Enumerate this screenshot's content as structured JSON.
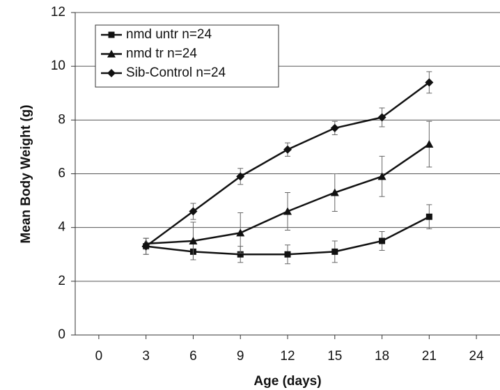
{
  "chart_data": {
    "type": "line",
    "x_label": "Age (days)",
    "y_label": "Mean Body Weight (g)",
    "x": [
      3,
      6,
      9,
      12,
      15,
      18,
      21
    ],
    "series": [
      {
        "name": "nmd untr n=24",
        "color": "#111111",
        "marker": "square",
        "values": [
          3.3,
          3.1,
          3.0,
          3.0,
          3.1,
          3.5,
          4.4
        ],
        "errors": [
          0.3,
          0.3,
          0.3,
          0.35,
          0.4,
          0.35,
          0.45
        ]
      },
      {
        "name": "nmd tr n=24",
        "color": "#111111",
        "marker": "triangle",
        "values": [
          3.4,
          3.5,
          3.8,
          4.6,
          5.3,
          5.9,
          7.1
        ],
        "errors": [
          0.2,
          0.7,
          0.75,
          0.7,
          0.7,
          0.75,
          0.85
        ]
      },
      {
        "name": "Sib-Control n=24",
        "color": "#111111",
        "marker": "diamond",
        "values": [
          3.3,
          4.6,
          5.9,
          6.9,
          7.7,
          8.1,
          9.4
        ],
        "errors": [
          0.3,
          0.3,
          0.3,
          0.25,
          0.25,
          0.35,
          0.4
        ]
      }
    ],
    "xlim": [
      -1.5,
      25.5
    ],
    "xticks": [
      0,
      3,
      6,
      9,
      12,
      15,
      18,
      21,
      24
    ],
    "ylim": [
      0,
      12
    ],
    "yticks": [
      0,
      2,
      4,
      6,
      8,
      10,
      12
    ],
    "grid": true,
    "legend": "upper left"
  }
}
